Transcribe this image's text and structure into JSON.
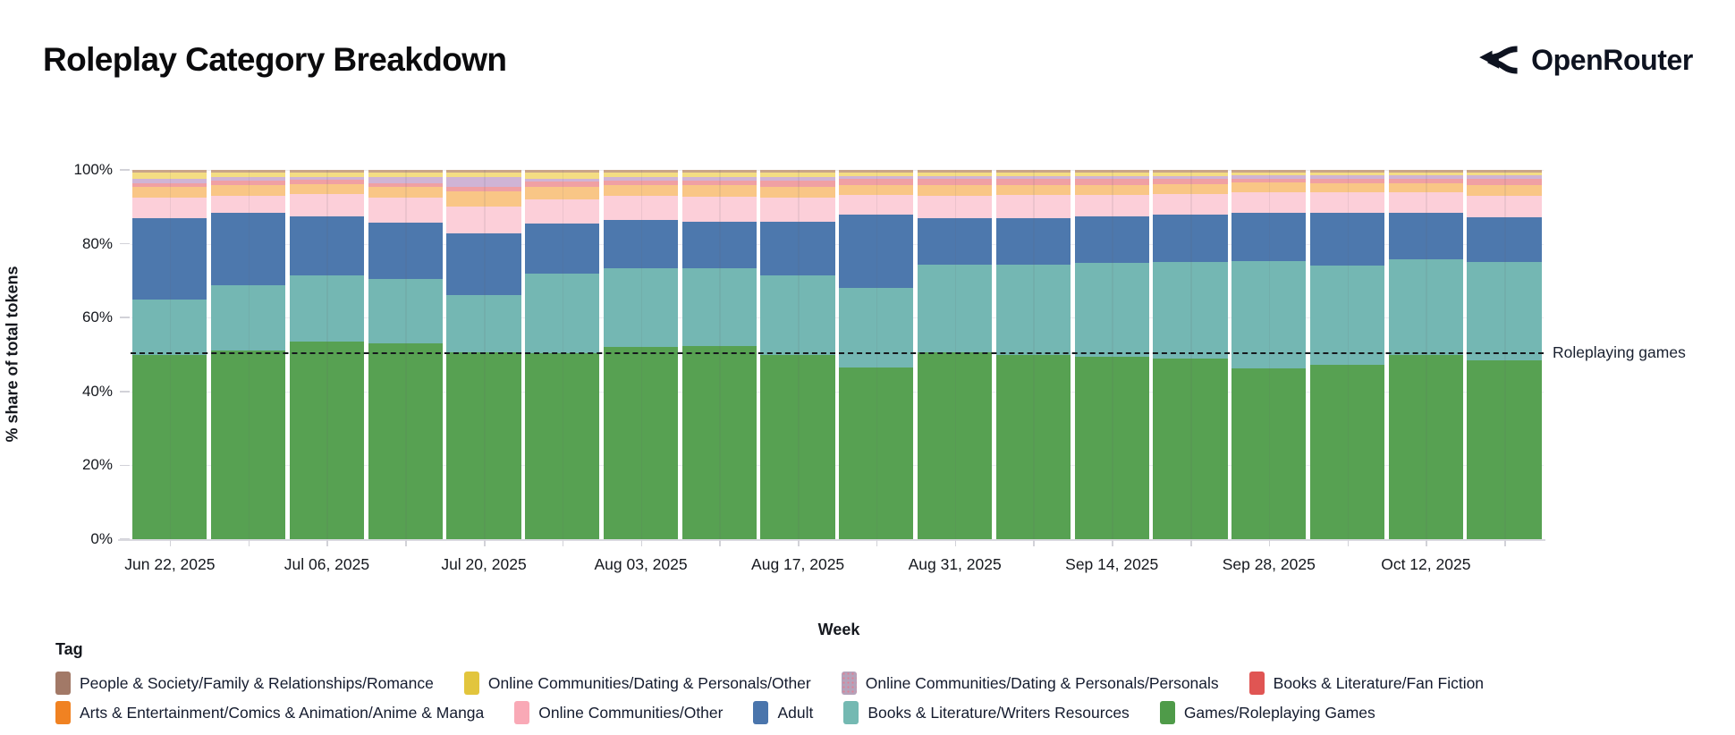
{
  "header": {
    "title": "Roleplay Category Breakdown",
    "brand": "OpenRouter"
  },
  "chart_data": {
    "type": "bar",
    "stacked": true,
    "title": "Roleplay Category Breakdown",
    "xlabel": "Week",
    "ylabel": "% share of total tokens",
    "ylim": [
      0,
      100
    ],
    "grid": true,
    "y_ticks": [
      "0%",
      "20%",
      "40%",
      "60%",
      "80%",
      "100%"
    ],
    "x_tick_labels": [
      "Jun 22, 2025",
      "Jul 06, 2025",
      "Jul 20, 2025",
      "Aug 03, 2025",
      "Aug 17, 2025",
      "Aug 31, 2025",
      "Sep 14, 2025",
      "Sep 28, 2025",
      "Oct 12, 2025"
    ],
    "categories": [
      "Jun 22, 2025",
      "Jun 29, 2025",
      "Jul 06, 2025",
      "Jul 13, 2025",
      "Jul 20, 2025",
      "Jul 27, 2025",
      "Aug 03, 2025",
      "Aug 10, 2025",
      "Aug 17, 2025",
      "Aug 24, 2025",
      "Aug 31, 2025",
      "Sep 07, 2025",
      "Sep 14, 2025",
      "Sep 21, 2025",
      "Sep 28, 2025",
      "Oct 05, 2025",
      "Oct 12, 2025",
      "Oct 19, 2025"
    ],
    "units": "% share of total tokens",
    "series": [
      {
        "name": "Games/Roleplaying Games",
        "band_color": "#57a152",
        "values": [
          50.0,
          51.0,
          53.5,
          53.0,
          50.7,
          50.3,
          52.0,
          52.3,
          50.0,
          46.6,
          50.7,
          50.0,
          49.5,
          48.8,
          46.3,
          47.2,
          49.8,
          48.5
        ]
      },
      {
        "name": "Books & Literature/Writers Resources",
        "band_color": "#74b7b3",
        "values": [
          15.0,
          17.8,
          18.0,
          17.5,
          15.3,
          21.7,
          21.3,
          21.0,
          21.5,
          21.4,
          23.6,
          24.3,
          25.3,
          26.2,
          29.0,
          26.8,
          26.1,
          26.5
        ]
      },
      {
        "name": "Adult",
        "band_color": "#4d78ad",
        "values": [
          22.0,
          19.7,
          16.0,
          15.3,
          16.7,
          13.5,
          13.2,
          12.7,
          14.5,
          19.8,
          12.7,
          12.7,
          12.7,
          13.0,
          13.0,
          14.5,
          12.4,
          12.2
        ]
      },
      {
        "name": "Online Communities/Other",
        "band_color": "#fccfd9",
        "values": [
          5.5,
          4.5,
          6.0,
          6.7,
          7.3,
          6.5,
          6.5,
          6.8,
          6.5,
          5.5,
          6.0,
          6.3,
          5.8,
          5.5,
          5.7,
          5.5,
          5.7,
          5.9
        ]
      },
      {
        "name": "Arts & Entertainment/Comics & Animation/Anime & Manga",
        "band_color": "#f9c686",
        "values": [
          3.0,
          3.0,
          2.7,
          3.0,
          4.3,
          3.3,
          3.0,
          3.0,
          3.0,
          2.7,
          3.0,
          2.7,
          2.7,
          2.7,
          2.5,
          2.3,
          2.3,
          2.9
        ]
      },
      {
        "name": "Books & Literature/Fan Fiction",
        "band_color": "#f0a0a3",
        "values": [
          1.0,
          1.2,
          1.1,
          1.0,
          1.2,
          1.5,
          1.2,
          1.4,
          1.5,
          1.5,
          1.5,
          1.5,
          1.5,
          1.3,
          1.2,
          1.4,
          1.4,
          1.5
        ]
      },
      {
        "name": "Online Communities/Dating & Personals/Personals",
        "band_color": "#cfb4d5",
        "pattern": true,
        "values": [
          1.2,
          0.8,
          0.8,
          1.5,
          2.5,
          0.8,
          0.8,
          0.8,
          1.0,
          0.9,
          0.9,
          0.9,
          0.9,
          0.9,
          0.8,
          0.8,
          0.8,
          1.0
        ]
      },
      {
        "name": "Online Communities/Dating & Personals/Other",
        "band_color": "#f4dd83",
        "values": [
          1.5,
          1.4,
          1.3,
          1.4,
          1.3,
          1.8,
          1.4,
          1.4,
          1.4,
          1.0,
          1.0,
          1.0,
          1.0,
          1.0,
          0.9,
          0.9,
          0.9,
          0.9
        ]
      },
      {
        "name": "People & Society/Family & Relationships/Romance",
        "band_color": "#c9a589",
        "values": [
          0.8,
          0.6,
          0.6,
          0.6,
          0.7,
          0.6,
          0.6,
          0.6,
          0.6,
          0.6,
          0.6,
          0.6,
          0.6,
          0.6,
          0.6,
          0.6,
          0.6,
          0.6
        ]
      }
    ],
    "annotation": {
      "label": "Roleplaying games",
      "y": 50,
      "style": "dashed-black"
    },
    "legend_position": "bottom"
  },
  "legend": {
    "title": "Tag",
    "items": [
      {
        "row": 1,
        "label": "People & Society/Family & Relationships/Romance",
        "color": "#a27967"
      },
      {
        "row": 1,
        "label": "Online Communities/Dating & Personals/Other",
        "color": "#e2c53d"
      },
      {
        "row": 1,
        "label": "Online Communities/Dating & Personals/Personals",
        "color": "#b5a2ba",
        "pattern": true
      },
      {
        "row": 1,
        "label": "Books & Literature/Fan Fiction",
        "color": "#e05553"
      },
      {
        "row": 2,
        "label": "Arts & Entertainment/Comics & Animation/Anime & Manga",
        "color": "#f08222"
      },
      {
        "row": 2,
        "label": "Online Communities/Other",
        "color": "#f9a9b6"
      },
      {
        "row": 2,
        "label": "Adult",
        "color": "#4a75ac"
      },
      {
        "row": 2,
        "label": "Books & Literature/Writers Resources",
        "color": "#74b9b2"
      },
      {
        "row": 2,
        "label": "Games/Roleplaying Games",
        "color": "#4f9b49"
      }
    ]
  }
}
